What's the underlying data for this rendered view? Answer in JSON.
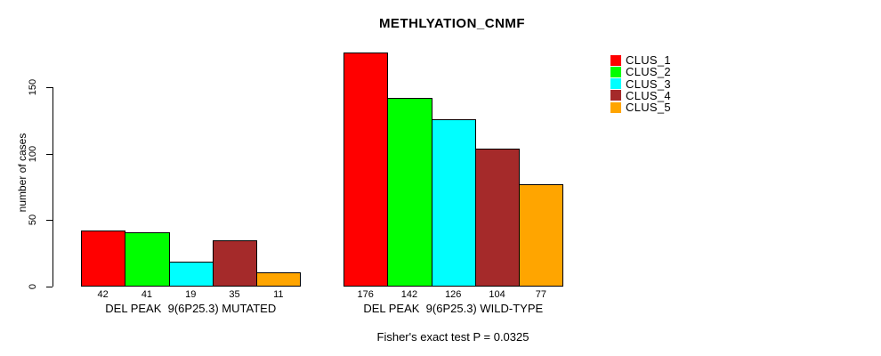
{
  "title": "METHLYATION_CNMF",
  "ylabel": "number of cases",
  "annotation": "Fisher's exact test P = 0.0325",
  "chart_data": {
    "type": "bar",
    "title": "METHLYATION_CNMF",
    "ylabel": "number of cases",
    "xlabel": "",
    "yticks": [
      0,
      50,
      100,
      150
    ],
    "ylim": [
      0,
      176
    ],
    "grid": false,
    "legend_position": "right-outside",
    "bar_value_labels": true,
    "categories": [
      "DEL PEAK  9(6P25.3) MUTATED",
      "DEL PEAK  9(6P25.3) WILD-TYPE"
    ],
    "series": [
      {
        "name": "CLUS_1",
        "color": "#ff0000",
        "values": [
          42,
          176
        ]
      },
      {
        "name": "CLUS_2",
        "color": "#00ff00",
        "values": [
          41,
          142
        ]
      },
      {
        "name": "CLUS_3",
        "color": "#00ffff",
        "values": [
          19,
          126
        ]
      },
      {
        "name": "CLUS_4",
        "color": "#a52a2a",
        "values": [
          35,
          104
        ]
      },
      {
        "name": "CLUS_5",
        "color": "#ffa500",
        "values": [
          11,
          77
        ]
      }
    ],
    "annotation": "Fisher's exact test P = 0.0325"
  }
}
